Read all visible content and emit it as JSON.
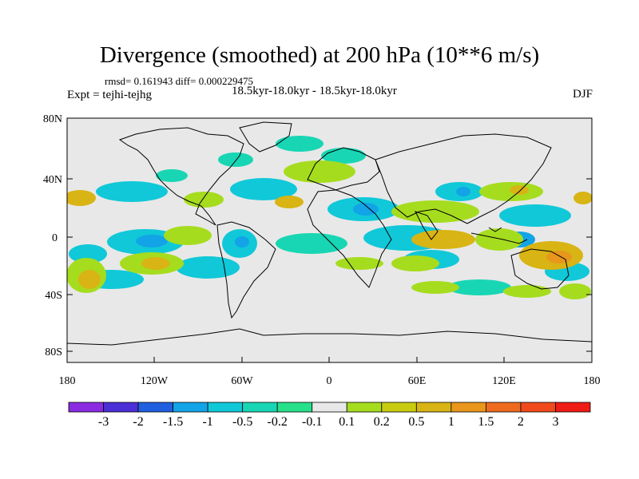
{
  "title": "Divergence (smoothed) at 200 hPa (10**6 m/s)",
  "stats": {
    "rmsd_label": "rmsd=",
    "rmsd_value": "0.161943",
    "diff_label": "diff=",
    "diff_value": "0.000229475"
  },
  "experiment": "Expt = tejhi-tejhg",
  "period": "18.5kyr-18.0kyr - 18.5kyr-18.0kyr",
  "season": "DJF",
  "axes": {
    "lat_ticks": [
      "80N",
      "40N",
      "0",
      "40S",
      "80S"
    ],
    "lon_ticks": [
      "180",
      "120W",
      "60W",
      "0",
      "60E",
      "120E",
      "180"
    ]
  },
  "colorbar": {
    "colors": [
      "#8a2be2",
      "#4b2fd6",
      "#1f5fe0",
      "#12a4e6",
      "#10c8d8",
      "#18d6b4",
      "#27e08a",
      "#e8e8e8",
      "#a6dc1e",
      "#c8cc10",
      "#d8b414",
      "#e8961c",
      "#ee6a1e",
      "#f04a1c",
      "#ee1c14"
    ],
    "labels": [
      "-3",
      "-2",
      "-1.5",
      "-1",
      "-0.5",
      "-0.2",
      "-0.1",
      "0.1",
      "0.2",
      "0.5",
      "1",
      "1.5",
      "2",
      "3"
    ]
  },
  "map_colors": {
    "background": "#e8e8e8",
    "positive_weak": "#a6dc1e",
    "positive_mid": "#d8b414",
    "positive_strong": "#e8961c",
    "negative_weak": "#18d6b4",
    "negative_mid": "#10c8d8",
    "negative_strong": "#12a4e6",
    "coast": "#000000"
  }
}
